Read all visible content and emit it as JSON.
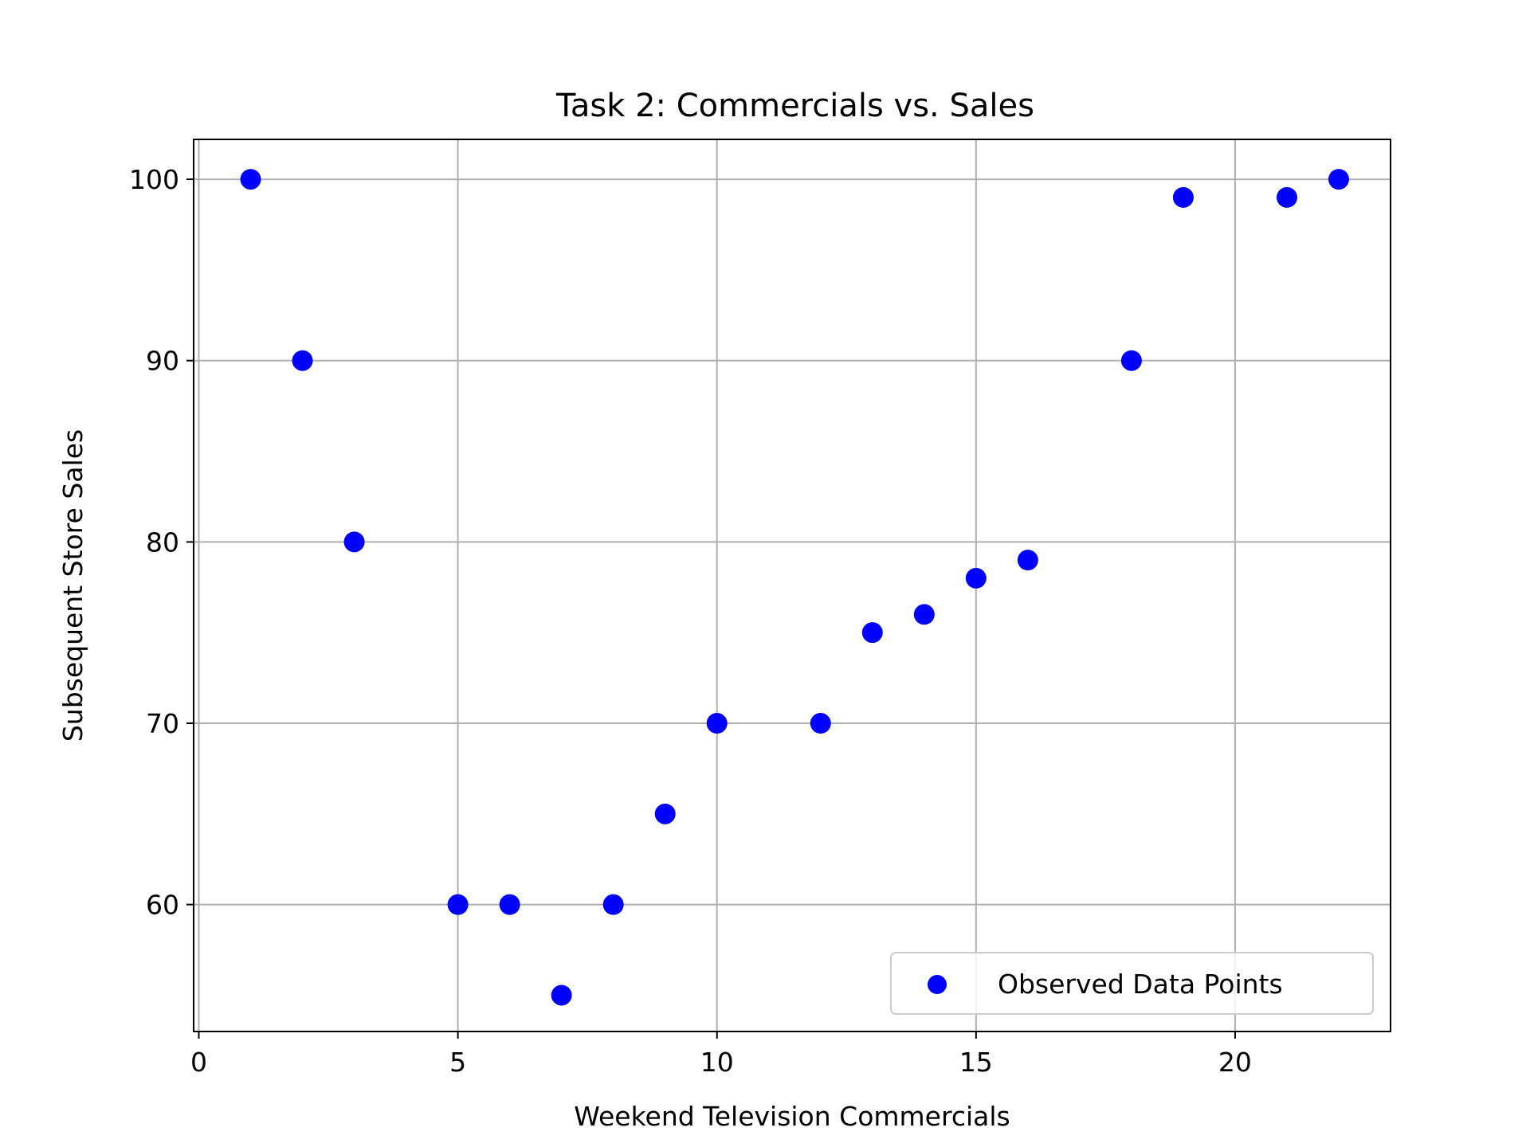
{
  "chart_data": {
    "type": "scatter",
    "title": "Task 2: Commercials vs. Sales",
    "xlabel": "Weekend Television Commercials",
    "ylabel": "Subsequent Store Sales",
    "xlim": [
      -0.1,
      23
    ],
    "ylim": [
      53,
      102.2
    ],
    "xticks": [
      0,
      5,
      10,
      15,
      20
    ],
    "yticks": [
      60,
      70,
      80,
      90,
      100
    ],
    "grid": true,
    "legend_position": "lower-right",
    "colors": {
      "marker": "#0000ff",
      "grid": "#b0b0b0",
      "axes": "#000000"
    },
    "series": [
      {
        "name": "Observed Data Points",
        "x": [
          1,
          2,
          3,
          5,
          6,
          7,
          8,
          9,
          10,
          12,
          13,
          14,
          15,
          16,
          18,
          19,
          21,
          22
        ],
        "y": [
          100,
          90,
          80,
          60,
          60,
          55,
          60,
          65,
          70,
          70,
          75,
          76,
          78,
          79,
          90,
          99,
          99,
          100
        ]
      }
    ]
  }
}
